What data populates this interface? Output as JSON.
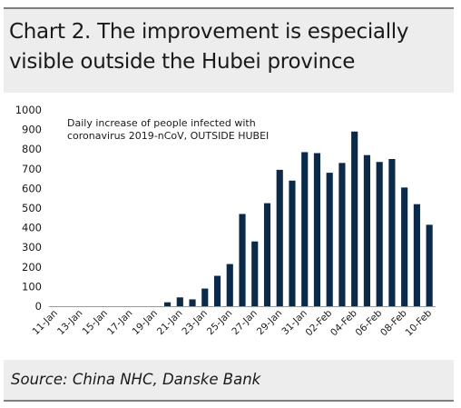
{
  "title_line1": "Chart 2. The improvement is especially",
  "title_line2": "visible outside the Hubei province",
  "source": "Source: China NHC, Danske Bank",
  "colors": {
    "bar": "#0b2a4a",
    "header_bg": "#ededed",
    "rule": "#7f7f7f"
  },
  "chart_data": {
    "type": "bar",
    "annotation_line1": "Daily increase of people infected with",
    "annotation_line2": "coronavirus 2019-nCoV, OUTSIDE HUBEI",
    "ylim": [
      0,
      1000
    ],
    "yticks": [
      0,
      100,
      200,
      300,
      400,
      500,
      600,
      700,
      800,
      900,
      1000
    ],
    "x_tick_labels": [
      "11-Jan",
      "13-Jan",
      "15-Jan",
      "17-Jan",
      "19-Jan",
      "21-Jan",
      "23-Jan",
      "25-Jan",
      "27-Jan",
      "29-Jan",
      "31-Jan",
      "02-Feb",
      "04-Feb",
      "06-Feb",
      "08-Feb",
      "10-Feb"
    ],
    "categories": [
      "11-Jan",
      "12-Jan",
      "13-Jan",
      "14-Jan",
      "15-Jan",
      "16-Jan",
      "17-Jan",
      "18-Jan",
      "19-Jan",
      "20-Jan",
      "21-Jan",
      "22-Jan",
      "23-Jan",
      "24-Jan",
      "25-Jan",
      "26-Jan",
      "27-Jan",
      "28-Jan",
      "29-Jan",
      "30-Jan",
      "31-Jan",
      "01-Feb",
      "02-Feb",
      "03-Feb",
      "04-Feb",
      "05-Feb",
      "06-Feb",
      "07-Feb",
      "08-Feb",
      "09-Feb",
      "10-Feb"
    ],
    "values": [
      0,
      0,
      0,
      0,
      0,
      0,
      0,
      0,
      0,
      20,
      45,
      35,
      90,
      155,
      215,
      470,
      330,
      525,
      695,
      640,
      785,
      780,
      680,
      730,
      890,
      770,
      735,
      750,
      605,
      520,
      415
    ],
    "grid": false,
    "legend": "none"
  }
}
